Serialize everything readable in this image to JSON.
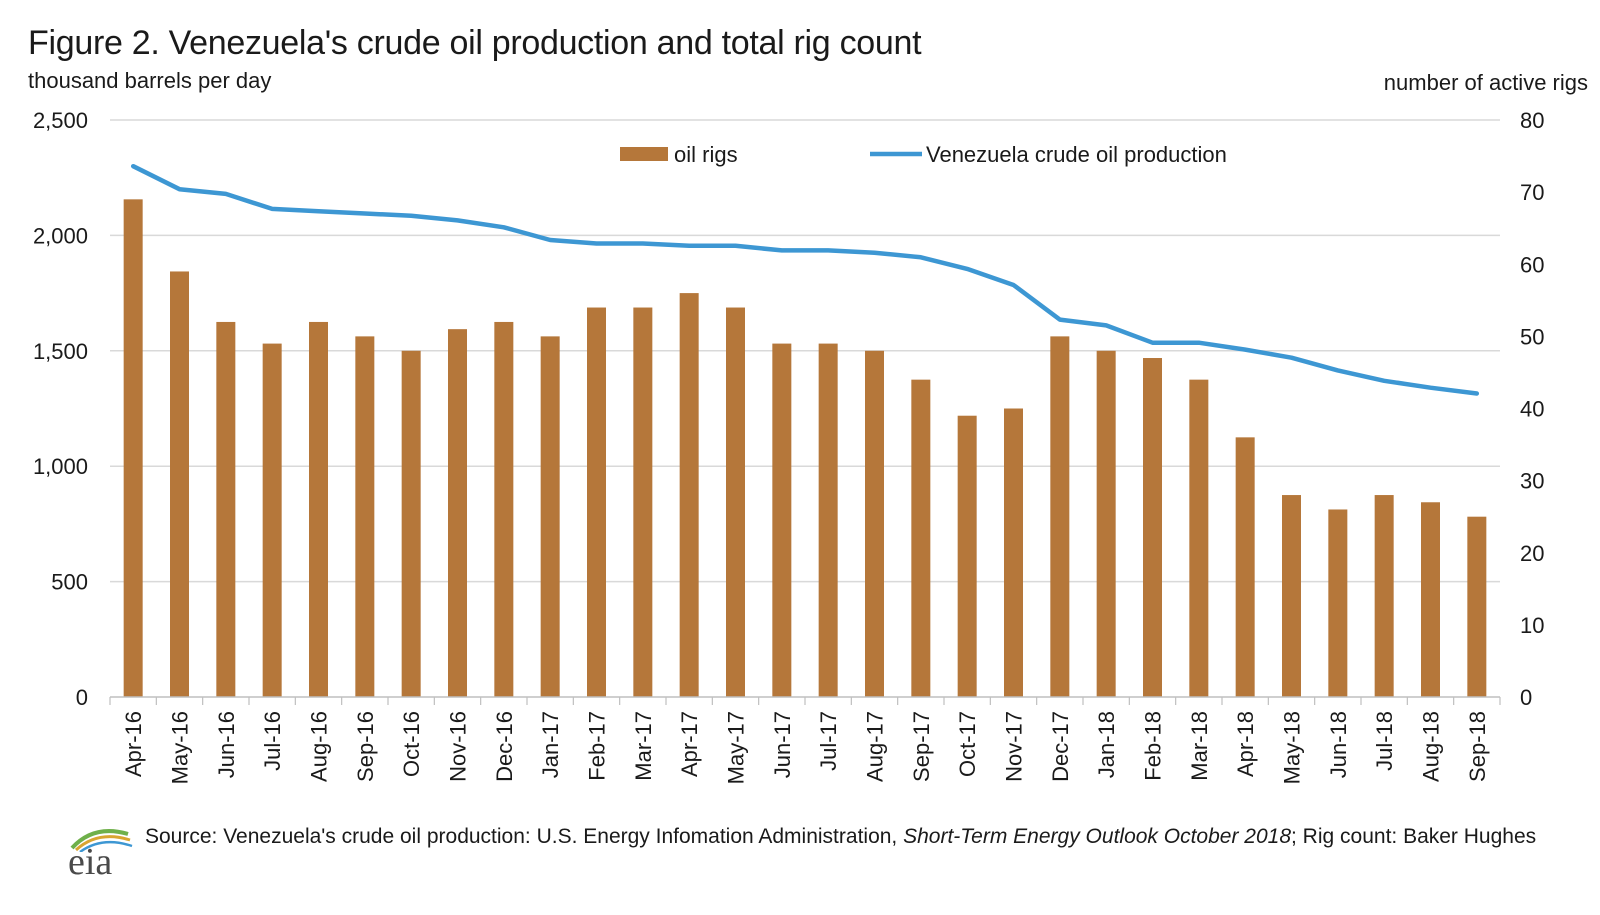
{
  "title": "Figure 2. Venezuela's crude oil production and total rig count",
  "left_unit": "thousand  barrels  per  day",
  "right_unit": "number  of  active  rigs",
  "source": {
    "prefix": "Source: Venezuela's crude oil production: U.S. Energy Infomation Administration, ",
    "italic": "Short-Term Energy Outlook October 2018",
    "suffix": "; Rig count: Baker Hughes"
  },
  "logo_text": "eia",
  "colors": {
    "bars": "#b5773a",
    "line": "#3d97d3",
    "grid": "#d9d9d9",
    "axis": "#bfbfbf"
  },
  "chart_data": {
    "type": "bar",
    "categories": [
      "Apr-16",
      "May-16",
      "Jun-16",
      "Jul-16",
      "Aug-16",
      "Sep-16",
      "Oct-16",
      "Nov-16",
      "Dec-16",
      "Jan-17",
      "Feb-17",
      "Mar-17",
      "Apr-17",
      "May-17",
      "Jun-17",
      "Jul-17",
      "Aug-17",
      "Sep-17",
      "Oct-17",
      "Nov-17",
      "Dec-17",
      "Jan-18",
      "Feb-18",
      "Mar-18",
      "Apr-18",
      "May-18",
      "Jun-18",
      "Jul-18",
      "Aug-18",
      "Sep-18"
    ],
    "series": [
      {
        "name": "oil rigs",
        "type": "bar",
        "axis": "right",
        "values": [
          69,
          59,
          52,
          49,
          52,
          50,
          48,
          51,
          52,
          50,
          54,
          54,
          56,
          54,
          49,
          49,
          48,
          44,
          39,
          40,
          50,
          48,
          47,
          44,
          36,
          28,
          26,
          28,
          27,
          25
        ]
      },
      {
        "name": "Venezuela crude oil production",
        "type": "line",
        "axis": "right-left",
        "yaxis": "left",
        "values": [
          2300,
          2200,
          2180,
          2115,
          2105,
          2095,
          2085,
          2065,
          2035,
          1980,
          1965,
          1965,
          1955,
          1955,
          1935,
          1935,
          1925,
          1905,
          1855,
          1785,
          1635,
          1610,
          1535,
          1535,
          1505,
          1470,
          1415,
          1370,
          1340,
          1315
        ]
      }
    ],
    "left_axis": {
      "label": "thousand  barrels  per  day",
      "ylim": [
        0,
        2500
      ],
      "ticks": [
        "0",
        "500",
        "1,000",
        "1,500",
        "2,000",
        "2,500"
      ]
    },
    "right_axis": {
      "label": "number  of  active  rigs",
      "ylim": [
        0,
        80
      ],
      "ticks": [
        "0",
        "10",
        "20",
        "30",
        "40",
        "50",
        "60",
        "70",
        "80"
      ]
    },
    "legend": {
      "placement": "top-center",
      "entries": [
        "oil rigs",
        "Venezuela crude oil production"
      ]
    },
    "grid": true
  }
}
